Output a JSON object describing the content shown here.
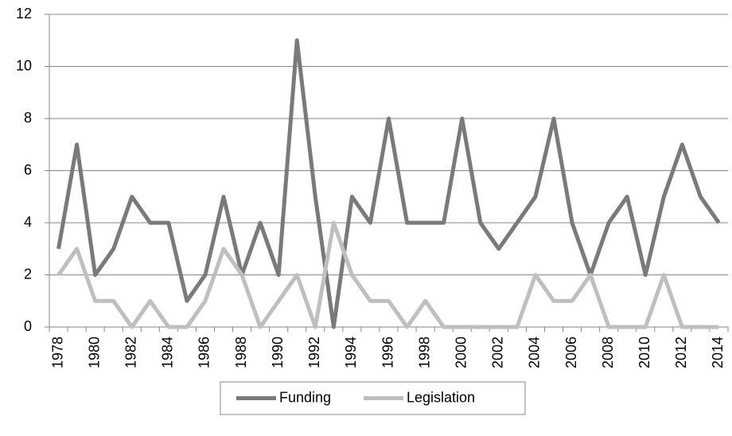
{
  "chart_data": {
    "type": "line",
    "categories": [
      "1978",
      null,
      "1980",
      null,
      "1982",
      null,
      "1984",
      null,
      "1986",
      null,
      "1988",
      null,
      "1990",
      null,
      "1992",
      null,
      "1994",
      null,
      "1996",
      null,
      "1998",
      null,
      "2000",
      null,
      "2002",
      null,
      "2004",
      null,
      "2006",
      null,
      "2008",
      null,
      "2010",
      null,
      "2012",
      null,
      "2014"
    ],
    "series": [
      {
        "name": "Funding",
        "color": "#7a7a7a",
        "values": [
          3,
          7,
          2,
          3,
          5,
          4,
          4,
          1,
          2,
          5,
          2,
          4,
          2,
          11,
          5,
          0,
          5,
          4,
          8,
          4,
          4,
          4,
          8,
          4,
          3,
          4,
          5,
          8,
          4,
          2,
          4,
          5,
          2,
          5,
          7,
          5,
          4
        ]
      },
      {
        "name": "Legislation",
        "color": "#bfbfbf",
        "values": [
          2,
          3,
          1,
          1,
          0,
          1,
          0,
          0,
          1,
          3,
          2,
          0,
          1,
          2,
          0,
          4,
          2,
          1,
          1,
          0,
          1,
          0,
          0,
          0,
          0,
          0,
          2,
          1,
          1,
          2,
          0,
          0,
          0,
          2,
          0,
          0,
          0
        ]
      }
    ],
    "ylim": [
      0,
      12
    ],
    "yticks": [
      0,
      2,
      4,
      6,
      8,
      10,
      12
    ],
    "grid": true,
    "legend": "bottom"
  }
}
